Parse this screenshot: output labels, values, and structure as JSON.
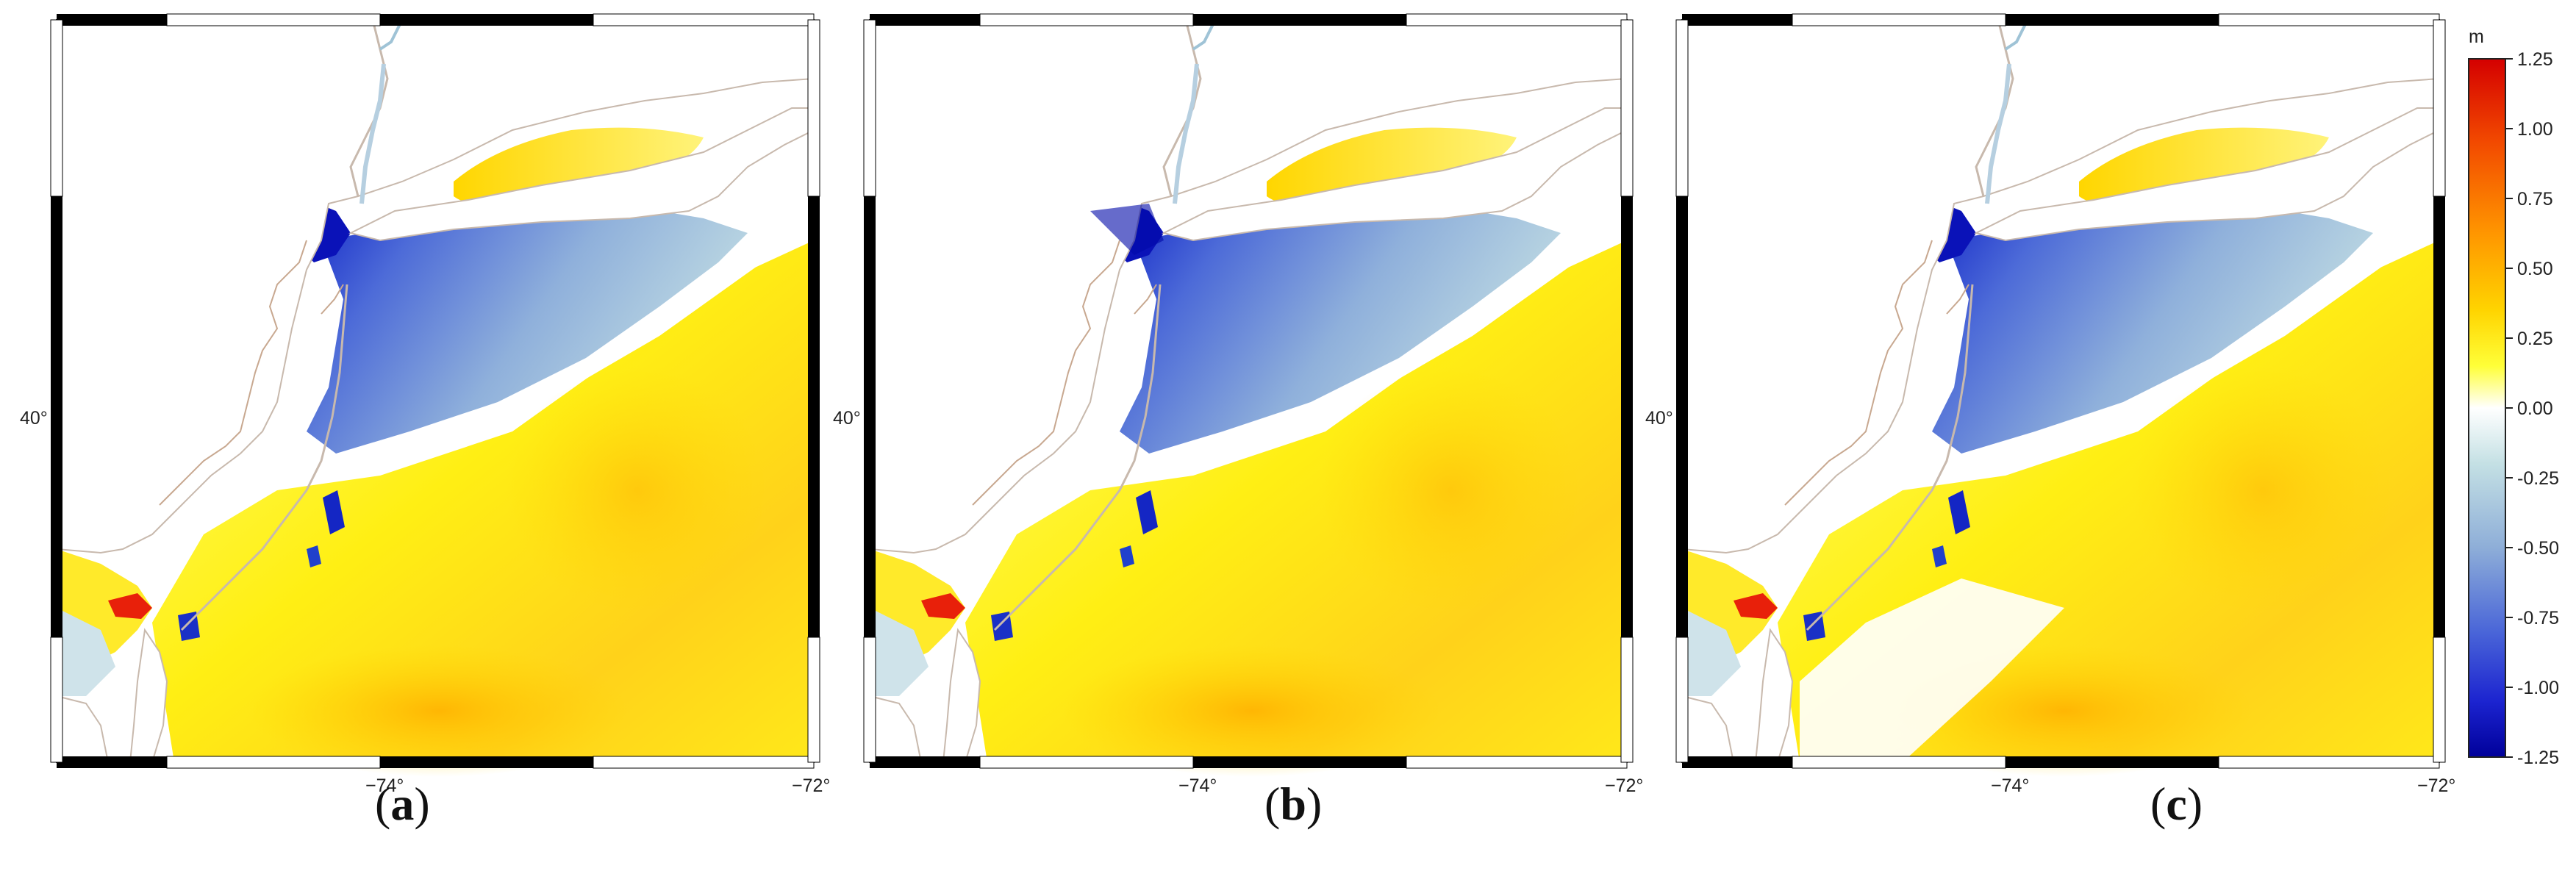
{
  "panels": [
    {
      "id": "a",
      "label_open": "(",
      "label_letter": "a",
      "label_close": ")"
    },
    {
      "id": "b",
      "label_open": "(",
      "label_letter": "b",
      "label_close": ")"
    },
    {
      "id": "c",
      "label_open": "(",
      "label_letter": "c",
      "label_close": ")"
    }
  ],
  "axes": {
    "lat_tick": "40°",
    "lon_ticks": [
      "−74°",
      "−72°"
    ]
  },
  "colorbar": {
    "unit": "m",
    "min": -1.25,
    "max": 1.25,
    "ticks": [
      "1.25",
      "1.00",
      "0.75",
      "0.50",
      "0.25",
      "0.00",
      "-0.25",
      "-0.50",
      "-0.75",
      "-1.00",
      "-1.25"
    ],
    "colors": {
      "max": "#e0150a",
      "high": "#f98a00",
      "mid_high": "#ffd400",
      "low_pos": "#ffff3c",
      "zero": "#ffffff",
      "low_neg": "#b8d6e0",
      "mid_neg": "#7a9ad6",
      "high_neg": "#2c3fd0",
      "min": "#0000b4"
    }
  },
  "map_colors": {
    "land": "#ffffff",
    "coastline": "#c8b9ad",
    "surge_positive": "#ffea00",
    "surge_negative": "#3d5bd6"
  }
}
